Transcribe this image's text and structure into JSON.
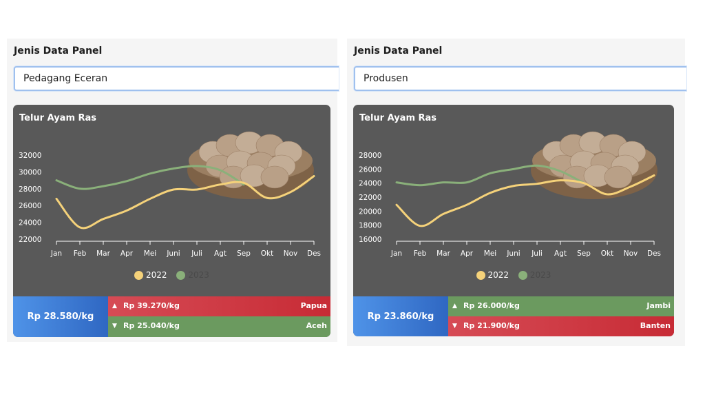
{
  "panels": [
    {
      "label": "Jenis Data Panel",
      "select_value": "Pedagang Eceran",
      "card": {
        "title": "Telur Ayam Ras",
        "price_today": "Rp 28.580/kg",
        "highest": {
          "price": "Rp 39.270/kg",
          "region": "Papua",
          "arrow": "▲"
        },
        "lowest": {
          "price": "Rp 25.040/kg",
          "region": "Aceh",
          "arrow": "▼"
        }
      }
    },
    {
      "label": "Jenis Data Panel",
      "select_value": "Produsen",
      "card": {
        "title": "Telur Ayam Ras",
        "price_today": "Rp 23.860/kg",
        "highest": {
          "price": "Rp 26.000/kg",
          "region": "Jambi",
          "arrow": "▲"
        },
        "lowest": {
          "price": "Rp 21.900/kg",
          "region": "Banten",
          "arrow": "▼"
        }
      }
    }
  ],
  "colors": {
    "series_2022": "#f5d27a",
    "series_2023": "#8ab07a",
    "highest_bg": "#c83540",
    "lowest_bg": "#6b9a5f",
    "accent": "#3f7ed6"
  },
  "icons": {
    "basket": "egg-basket-image",
    "up": "caret-up-icon",
    "down": "caret-down-icon"
  },
  "chart_data": [
    {
      "type": "line",
      "categories": [
        "Jan",
        "Feb",
        "Mar",
        "Apr",
        "Mei",
        "Juni",
        "Juli",
        "Agt",
        "Sep",
        "Okt",
        "Nov",
        "Des"
      ],
      "yticks": [
        22000,
        24000,
        26000,
        28000,
        30000,
        32000
      ],
      "ylim": [
        22000,
        32000
      ],
      "series": [
        {
          "name": "2022",
          "values": [
            26800,
            23400,
            24400,
            25400,
            26800,
            27900,
            27900,
            28500,
            28700,
            26900,
            27600,
            29500
          ]
        },
        {
          "name": "2023",
          "values": [
            29000,
            28000,
            28300,
            28900,
            29800,
            30400,
            30700,
            30200,
            28500,
            null,
            null,
            null
          ]
        }
      ],
      "legend": "bottom",
      "grid": false
    },
    {
      "type": "line",
      "categories": [
        "Jan",
        "Feb",
        "Mar",
        "Apr",
        "Mei",
        "Juni",
        "Juli",
        "Agt",
        "Sep",
        "Okt",
        "Nov",
        "Des"
      ],
      "yticks": [
        16000,
        18000,
        20000,
        22000,
        24000,
        26000,
        28000
      ],
      "ylim": [
        16000,
        28000
      ],
      "series": [
        {
          "name": "2022",
          "values": [
            20900,
            17900,
            19600,
            20900,
            22600,
            23600,
            23900,
            24400,
            24000,
            22400,
            23500,
            25100
          ]
        },
        {
          "name": "2023",
          "values": [
            24100,
            23700,
            24100,
            24100,
            25400,
            26000,
            26500,
            25700,
            24000,
            null,
            null,
            null
          ]
        }
      ],
      "legend": "bottom",
      "grid": false
    }
  ]
}
